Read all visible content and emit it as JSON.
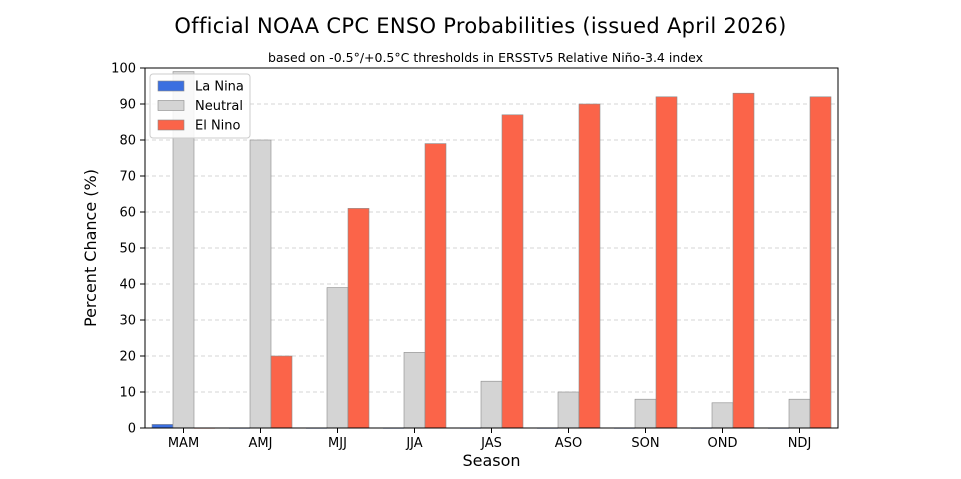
{
  "chart_data": {
    "type": "bar",
    "title": "Official NOAA CPC ENSO Probabilities (issued April 2026)",
    "subtitle": "based on -0.5°/+0.5°C thresholds in ERSSTv5 Relative Niño-3.4 index",
    "xlabel": "Season",
    "ylabel": "Percent Chance (%)",
    "ylim": [
      0,
      100
    ],
    "yticks": [
      0,
      10,
      20,
      30,
      40,
      50,
      60,
      70,
      80,
      90,
      100
    ],
    "grid": "horizontal dashed",
    "legend_position": "top-left",
    "categories": [
      "MAM",
      "AMJ",
      "MJJ",
      "JJA",
      "JAS",
      "ASO",
      "SON",
      "OND",
      "NDJ"
    ],
    "series": [
      {
        "name": "La Nina",
        "color": "#3b6fe0",
        "values": [
          1,
          0,
          0,
          0,
          0,
          0,
          0,
          0,
          0
        ]
      },
      {
        "name": "Neutral",
        "color": "#d4d4d4",
        "values": [
          99,
          80,
          39,
          21,
          13,
          10,
          8,
          7,
          8
        ]
      },
      {
        "name": "El Nino",
        "color": "#fb6449",
        "values": [
          0,
          20,
          61,
          79,
          87,
          90,
          92,
          93,
          92
        ]
      }
    ]
  }
}
